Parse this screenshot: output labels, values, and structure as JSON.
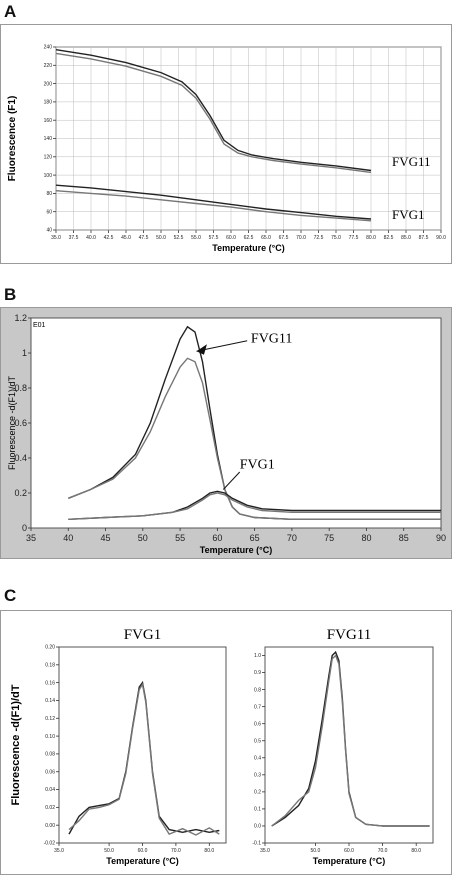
{
  "panels": {
    "a_label": "A",
    "b_label": "B",
    "c_label": "C"
  },
  "colors": {
    "curve": "#222222",
    "curve_light": "#777777",
    "grid": "#bbbbbb",
    "panel_b_bg": "#c8c8c8"
  },
  "chart_data": [
    {
      "type": "line",
      "panel": "A",
      "ylabel": "Fluorescence (F1)",
      "xlabel": "Temperature (°C)",
      "xlim": [
        35.0,
        90.0
      ],
      "ylim": [
        40,
        240
      ],
      "x_ticks": [
        "35.0",
        "37.5",
        "40.0",
        "42.5",
        "45.0",
        "47.5",
        "50.0",
        "52.5",
        "55.0",
        "57.5",
        "60.0",
        "62.5",
        "65.0",
        "67.5",
        "70.0",
        "72.5",
        "75.0",
        "77.5",
        "80.0",
        "82.5",
        "85.0",
        "87.5",
        "90.0"
      ],
      "y_ticks": [
        "40",
        "60",
        "80",
        "100",
        "120",
        "140",
        "160",
        "180",
        "200",
        "220",
        "240"
      ],
      "series": [
        {
          "name": "FVG11",
          "x": [
            35,
            40,
            45,
            50,
            53,
            55,
            57,
            59,
            61,
            63,
            66,
            70,
            75,
            80
          ],
          "values": [
            237,
            231,
            223,
            212,
            202,
            188,
            165,
            138,
            127,
            122,
            118,
            114,
            110,
            105
          ]
        },
        {
          "name": "",
          "x": [
            35,
            40,
            45,
            50,
            53,
            55,
            57,
            59,
            61,
            63,
            66,
            70,
            75,
            80
          ],
          "values": [
            233,
            227,
            219,
            208,
            198,
            184,
            161,
            134,
            124,
            120,
            116,
            112,
            108,
            103
          ]
        },
        {
          "name": "FVG1",
          "x": [
            35,
            40,
            45,
            50,
            55,
            60,
            65,
            70,
            75,
            80
          ],
          "values": [
            89,
            86,
            82,
            78,
            73,
            68,
            63,
            59,
            55,
            52
          ]
        },
        {
          "name": "",
          "x": [
            35,
            40,
            45,
            50,
            55,
            60,
            65,
            70,
            75,
            80
          ],
          "values": [
            83,
            80,
            77,
            73,
            69,
            65,
            60,
            56,
            53,
            50
          ]
        }
      ],
      "annotations": [
        "FVG11",
        "FVG1"
      ]
    },
    {
      "type": "line",
      "panel": "B",
      "ylabel": "Fluorescence -d(F1)/dT",
      "xlabel": "Temperature (°C)",
      "xlim": [
        35,
        90
      ],
      "ylim": [
        0,
        1.2
      ],
      "x_ticks": [
        "35",
        "40",
        "45",
        "50",
        "55",
        "60",
        "65",
        "70",
        "75",
        "80",
        "85",
        "90"
      ],
      "y_ticks": [
        "0",
        "0.2",
        "0.4",
        "0.6",
        "0.8",
        "1",
        "1.2"
      ],
      "series": [
        {
          "name": "FVG11",
          "x": [
            40,
            43,
            46,
            49,
            51,
            53,
            55,
            56,
            57,
            58,
            59,
            60,
            61,
            62,
            63,
            65,
            70,
            80,
            90
          ],
          "values": [
            0.17,
            0.22,
            0.29,
            0.42,
            0.6,
            0.85,
            1.08,
            1.15,
            1.12,
            0.95,
            0.68,
            0.42,
            0.22,
            0.12,
            0.08,
            0.06,
            0.05,
            0.05,
            0.05
          ]
        },
        {
          "name": "",
          "x": [
            40,
            43,
            46,
            49,
            51,
            53,
            55,
            56,
            57,
            58,
            59,
            60,
            61,
            62,
            63,
            65,
            70,
            80,
            90
          ],
          "values": [
            0.17,
            0.22,
            0.28,
            0.4,
            0.55,
            0.75,
            0.92,
            0.97,
            0.95,
            0.83,
            0.62,
            0.4,
            0.22,
            0.12,
            0.08,
            0.06,
            0.05,
            0.05,
            0.05
          ]
        },
        {
          "name": "FVG1",
          "x": [
            40,
            45,
            50,
            54,
            56,
            58,
            59,
            60,
            61,
            62,
            64,
            66,
            70,
            80,
            90
          ],
          "values": [
            0.05,
            0.06,
            0.07,
            0.09,
            0.12,
            0.17,
            0.2,
            0.21,
            0.2,
            0.17,
            0.13,
            0.11,
            0.1,
            0.1,
            0.1
          ]
        },
        {
          "name": "",
          "x": [
            40,
            45,
            50,
            54,
            56,
            58,
            59,
            60,
            61,
            62,
            64,
            66,
            70,
            80,
            90
          ],
          "values": [
            0.05,
            0.06,
            0.07,
            0.09,
            0.11,
            0.16,
            0.19,
            0.2,
            0.19,
            0.16,
            0.12,
            0.1,
            0.09,
            0.09,
            0.09
          ]
        }
      ],
      "annotations": [
        "FVG11",
        "FVG1"
      ],
      "corner_label": "E01"
    },
    {
      "type": "line",
      "panel": "C-left",
      "title": "FVG1",
      "ylabel": "Fluorescence -d(F1)/dT",
      "xlabel": "Temperature (°C)",
      "xlim": [
        35.0,
        85.0
      ],
      "ylim": [
        -0.02,
        0.2
      ],
      "x_ticks": [
        "35.0",
        "50.0",
        "60.0",
        "70.0",
        "80.0"
      ],
      "x_tick_values": [
        35,
        50,
        60,
        70,
        80
      ],
      "y_ticks": [
        "-0.02",
        "0.00",
        "0.02",
        "0.04",
        "0.06",
        "0.08",
        "0.10",
        "0.12",
        "0.14",
        "0.16",
        "0.18",
        "0.20"
      ],
      "series": [
        {
          "name": "",
          "x": [
            38,
            41,
            44,
            47,
            50,
            53,
            55,
            57,
            59,
            60,
            61,
            63,
            65,
            68,
            72,
            76,
            80,
            83
          ],
          "values": [
            -0.01,
            0.01,
            0.02,
            0.022,
            0.024,
            0.03,
            0.06,
            0.11,
            0.155,
            0.16,
            0.14,
            0.06,
            0.01,
            -0.005,
            -0.008,
            -0.005,
            -0.008,
            -0.006
          ]
        },
        {
          "name": "",
          "x": [
            38,
            41,
            44,
            47,
            50,
            53,
            55,
            57,
            59,
            60,
            61,
            63,
            65,
            68,
            72,
            76,
            80,
            83
          ],
          "values": [
            -0.005,
            0.005,
            0.018,
            0.02,
            0.023,
            0.029,
            0.058,
            0.108,
            0.152,
            0.158,
            0.138,
            0.058,
            0.008,
            -0.01,
            -0.004,
            -0.011,
            -0.003,
            -0.01
          ]
        }
      ]
    },
    {
      "type": "line",
      "panel": "C-right",
      "title": "FVG11",
      "xlabel": "Temperature (°C)",
      "xlim": [
        35.0,
        85.0
      ],
      "ylim": [
        -0.1,
        1.05
      ],
      "x_ticks": [
        "35.0",
        "50.0",
        "60.0",
        "70.0",
        "80.0"
      ],
      "x_tick_values": [
        35,
        50,
        60,
        70,
        80
      ],
      "y_ticks": [
        "-0.1",
        "0.0",
        "0.1",
        "0.2",
        "0.3",
        "0.4",
        "0.5",
        "0.6",
        "0.7",
        "0.8",
        "0.9",
        "1.0"
      ],
      "series": [
        {
          "name": "",
          "x": [
            37,
            41,
            45,
            48,
            50,
            52,
            54,
            55,
            56,
            57,
            58,
            59,
            60,
            62,
            65,
            70,
            80,
            84
          ],
          "values": [
            0.0,
            0.05,
            0.12,
            0.22,
            0.38,
            0.62,
            0.88,
            1.0,
            1.02,
            0.97,
            0.75,
            0.45,
            0.2,
            0.05,
            0.01,
            0.0,
            0.0,
            0.0
          ]
        },
        {
          "name": "",
          "x": [
            37,
            41,
            45,
            48,
            50,
            52,
            54,
            55,
            56,
            57,
            58,
            59,
            60,
            62,
            65,
            70,
            80,
            84
          ],
          "values": [
            0.0,
            0.06,
            0.15,
            0.2,
            0.34,
            0.58,
            0.85,
            0.98,
            1.0,
            0.95,
            0.73,
            0.44,
            0.19,
            0.05,
            0.01,
            0.0,
            0.0,
            0.0
          ]
        }
      ]
    }
  ]
}
